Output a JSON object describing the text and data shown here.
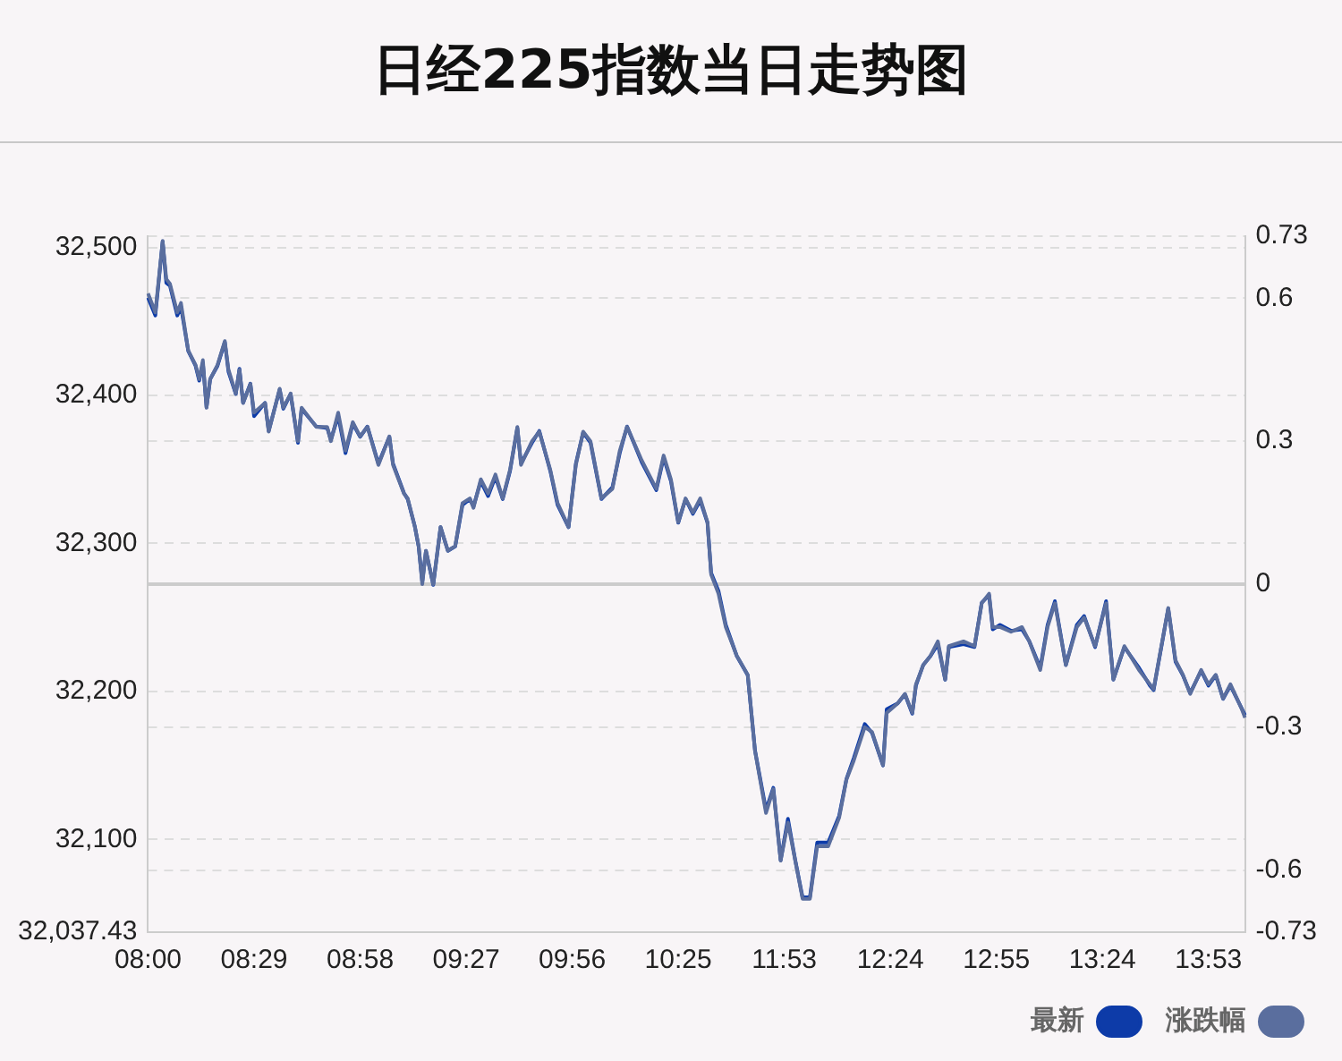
{
  "chart_data": {
    "type": "line",
    "title": "日经225指数当日走势图",
    "categories": [
      "08:00",
      null,
      null,
      null,
      null,
      null,
      null,
      null,
      null,
      null,
      null,
      null,
      null,
      null,
      null,
      null,
      null,
      null,
      null,
      null,
      null,
      null,
      null,
      null,
      null,
      null,
      null,
      null,
      null,
      "08:29",
      null,
      null,
      null,
      null,
      null,
      null,
      null,
      null,
      null,
      null,
      null,
      null,
      null,
      null,
      null,
      null,
      null,
      null,
      null,
      null,
      null,
      null,
      null,
      null,
      null,
      null,
      null,
      null,
      "08:58",
      null,
      null,
      null,
      null,
      null,
      null,
      null,
      null,
      null,
      null,
      null,
      null,
      null,
      null,
      null,
      null,
      null,
      null,
      null,
      null,
      null,
      null,
      null,
      null,
      null,
      null,
      null,
      null,
      "09:27",
      null,
      null,
      null,
      null,
      null,
      null,
      null,
      null,
      null,
      null,
      null,
      null,
      null,
      null,
      null,
      null,
      null,
      null,
      null,
      null,
      null,
      null,
      null,
      null,
      null,
      null,
      null,
      null,
      "09:56",
      null,
      null,
      null,
      null,
      null,
      null,
      null,
      null,
      null,
      null,
      null,
      null,
      null,
      null,
      null,
      null,
      null,
      null,
      null,
      null,
      null,
      null,
      null,
      null,
      null,
      null,
      null,
      null,
      "10:25",
      null,
      null,
      null,
      null,
      null,
      null,
      null,
      null,
      null,
      null,
      null,
      null,
      null,
      null,
      null,
      null,
      null,
      null,
      null,
      null,
      null,
      null,
      null,
      null,
      null,
      null,
      null,
      null,
      "11:53",
      null,
      null,
      null,
      null,
      null,
      null,
      null,
      null,
      null,
      null,
      null,
      null,
      null,
      null,
      null,
      null,
      null,
      null,
      null,
      null,
      null,
      null,
      null,
      null,
      null,
      null,
      null,
      null,
      "12:24",
      null,
      null,
      null,
      null,
      null,
      null,
      null,
      null,
      null,
      null,
      null,
      null,
      null,
      null,
      null,
      null,
      null,
      null,
      null,
      null,
      null,
      null,
      null,
      null,
      null,
      null,
      null,
      null,
      "12:55",
      null,
      null,
      null,
      null,
      null,
      null,
      null,
      null,
      null,
      null,
      null,
      null,
      null,
      null,
      null,
      null,
      null,
      null,
      null,
      null,
      null,
      null,
      null,
      null,
      null,
      null,
      null,
      null,
      "13:24",
      null,
      null,
      null,
      null,
      null,
      null,
      null,
      null,
      null,
      null,
      null,
      null,
      null,
      null,
      null,
      null,
      null,
      null,
      null,
      null,
      null,
      null,
      null,
      null,
      null,
      null,
      null,
      null,
      "13:53",
      null,
      null,
      null,
      null,
      null,
      null,
      null,
      null,
      null,
      null
    ],
    "series": [
      {
        "name": "最新",
        "color": "#0d3ba8",
        "axis": "y",
        "values": [
          32466,
          null,
          32454,
          null,
          32504,
          32476,
          32474,
          null,
          32454,
          32460,
          null,
          32430,
          null,
          32420,
          32410,
          32422,
          32392,
          32411,
          null,
          32420,
          null,
          32436,
          32416,
          null,
          32401,
          32418,
          32395,
          null,
          32408,
          32386,
          null,
          null,
          32395,
          32376,
          null,
          null,
          32404,
          32391,
          null,
          32401,
          null,
          32368,
          32391,
          null,
          null,
          null,
          32379,
          null,
          null,
          32378,
          32370,
          null,
          32386,
          null,
          32361,
          null,
          32381,
          null,
          32372,
          null,
          32379,
          null,
          null,
          32354,
          null,
          null,
          32372,
          32354,
          null,
          null,
          32334,
          32330,
          null,
          32311,
          32298,
          32274,
          32295,
          null,
          32272,
          null,
          32311,
          null,
          32295,
          null,
          32298,
          null,
          32326,
          null,
          32330,
          32325,
          null,
          32342,
          null,
          32332,
          null,
          32345,
          null,
          32330,
          null,
          32349,
          null,
          32378,
          32354,
          null,
          null,
          32368,
          null,
          32376,
          null,
          null,
          32349,
          null,
          32326,
          null,
          null,
          32311,
          null,
          32354,
          null,
          32375,
          null,
          32368,
          null,
          null,
          32330,
          null,
          null,
          32338,
          null,
          32361,
          null,
          32379,
          null,
          null,
          null,
          32355,
          null,
          null,
          null,
          32336,
          null,
          32358,
          null,
          32342,
          null,
          32314,
          null,
          32330,
          null,
          32320,
          null,
          32329,
          null,
          32314,
          32280,
          null,
          32268,
          null,
          32245,
          null,
          null,
          32224,
          null,
          null,
          32211,
          null,
          32160,
          null,
          null,
          32120,
          null,
          32135,
          null,
          32086,
          null,
          32114,
          null,
          32086,
          null,
          32061,
          null,
          32061,
          null,
          32098,
          null,
          null,
          32098,
          null,
          null,
          32116,
          null,
          32141,
          null,
          32155,
          null,
          null,
          32178,
          null,
          32172,
          null,
          null,
          32150,
          32188,
          null,
          null,
          32192,
          null,
          32198,
          null,
          32185,
          32204,
          null,
          32218,
          null,
          32224,
          null,
          32232,
          null,
          32208,
          32230,
          null,
          null,
          null,
          32232,
          null,
          null,
          32230,
          null,
          32260,
          null,
          32265,
          32242,
          null,
          32245,
          null,
          null,
          32241,
          null,
          null,
          32242,
          null,
          32234,
          null,
          null,
          32216,
          null,
          32245,
          null,
          32261,
          null,
          null,
          32218,
          null,
          null,
          32245,
          null,
          32251,
          null,
          null,
          32230,
          null,
          null,
          32261,
          null,
          32208,
          null,
          null,
          32230,
          null,
          null,
          null,
          32216,
          null,
          null,
          32204,
          32201,
          null,
          null,
          null,
          32256,
          null,
          32220,
          null,
          32211,
          null,
          32199,
          null,
          null,
          32214,
          null,
          32204,
          null,
          32211,
          null,
          32195,
          null,
          32204,
          null,
          null,
          32189,
          32184
        ]
      },
      {
        "name": "涨跌幅",
        "color": "#5a6e9e",
        "axis": "y2",
        "values": [
          0.61,
          null,
          0.57,
          null,
          0.72,
          0.64,
          0.63,
          null,
          0.57,
          0.59,
          null,
          0.49,
          null,
          0.46,
          0.43,
          0.47,
          0.37,
          0.43,
          null,
          0.46,
          null,
          0.51,
          0.45,
          null,
          0.4,
          0.45,
          0.38,
          null,
          0.42,
          0.36,
          null,
          null,
          0.38,
          0.32,
          null,
          null,
          0.41,
          0.37,
          null,
          0.4,
          null,
          0.3,
          0.37,
          null,
          null,
          null,
          0.33,
          null,
          null,
          0.33,
          0.3,
          null,
          0.36,
          null,
          0.28,
          null,
          0.34,
          null,
          0.31,
          null,
          0.33,
          null,
          null,
          0.25,
          null,
          null,
          0.31,
          0.25,
          null,
          null,
          0.19,
          0.18,
          null,
          0.12,
          0.08,
          0.0,
          0.07,
          null,
          0.0,
          null,
          0.12,
          null,
          0.07,
          null,
          0.08,
          null,
          0.17,
          null,
          0.18,
          0.16,
          null,
          0.22,
          null,
          0.19,
          null,
          0.23,
          null,
          0.18,
          null,
          0.24,
          null,
          0.33,
          0.25,
          null,
          null,
          0.3,
          null,
          0.32,
          null,
          null,
          0.24,
          null,
          0.17,
          null,
          null,
          0.12,
          null,
          0.25,
          null,
          0.32,
          null,
          0.3,
          null,
          null,
          0.18,
          null,
          null,
          0.2,
          null,
          0.28,
          null,
          0.33,
          null,
          null,
          null,
          0.26,
          null,
          null,
          null,
          0.2,
          null,
          0.27,
          null,
          0.22,
          null,
          0.13,
          null,
          0.18,
          null,
          0.15,
          null,
          0.18,
          null,
          0.13,
          0.02,
          null,
          -0.02,
          null,
          -0.09,
          null,
          null,
          -0.15,
          null,
          null,
          -0.19,
          null,
          -0.35,
          null,
          null,
          -0.48,
          null,
          -0.43,
          null,
          -0.58,
          null,
          -0.5,
          null,
          -0.58,
          null,
          -0.66,
          null,
          -0.66,
          null,
          -0.55,
          null,
          null,
          -0.55,
          null,
          null,
          -0.49,
          null,
          -0.41,
          null,
          -0.37,
          null,
          null,
          -0.3,
          null,
          -0.31,
          null,
          null,
          -0.38,
          -0.27,
          null,
          null,
          -0.25,
          null,
          -0.23,
          null,
          -0.27,
          -0.21,
          null,
          -0.17,
          null,
          -0.15,
          null,
          -0.12,
          null,
          -0.2,
          -0.13,
          null,
          null,
          null,
          -0.12,
          null,
          null,
          -0.13,
          null,
          -0.04,
          null,
          -0.02,
          -0.09,
          null,
          -0.09,
          null,
          null,
          -0.1,
          null,
          null,
          -0.09,
          null,
          -0.12,
          null,
          null,
          -0.18,
          null,
          -0.09,
          null,
          -0.04,
          null,
          null,
          -0.17,
          null,
          null,
          -0.09,
          null,
          -0.07,
          null,
          null,
          -0.13,
          null,
          null,
          -0.04,
          null,
          -0.2,
          null,
          null,
          -0.13,
          null,
          null,
          null,
          -0.18,
          null,
          null,
          -0.21,
          -0.22,
          null,
          null,
          null,
          -0.05,
          null,
          -0.16,
          null,
          -0.19,
          null,
          -0.23,
          null,
          null,
          -0.18,
          null,
          -0.21,
          null,
          -0.19,
          null,
          -0.24,
          null,
          -0.21,
          null,
          null,
          -0.26,
          -0.28
        ]
      }
    ],
    "ylim": [
      32037.43,
      32507.57
    ],
    "yticks": [
      {
        "value": 32037.43,
        "label": "32,037.43"
      },
      {
        "value": 32100,
        "label": "32,100"
      },
      {
        "value": 32200,
        "label": "32,200"
      },
      {
        "value": 32300,
        "label": "32,300"
      },
      {
        "value": 32400,
        "label": "32,400"
      },
      {
        "value": 32500,
        "label": "32,500"
      }
    ],
    "y2lim": [
      -0.73,
      0.73
    ],
    "y2ticks": [
      -0.73,
      -0.6,
      -0.3,
      0,
      0.3,
      0.6,
      0.73
    ],
    "ref_lines": [
      {
        "axis": "y2",
        "value": 0,
        "color": "#cccccc"
      }
    ],
    "grid": "y",
    "legend": "bottom right",
    "marker": "none",
    "line_style": "solid"
  }
}
